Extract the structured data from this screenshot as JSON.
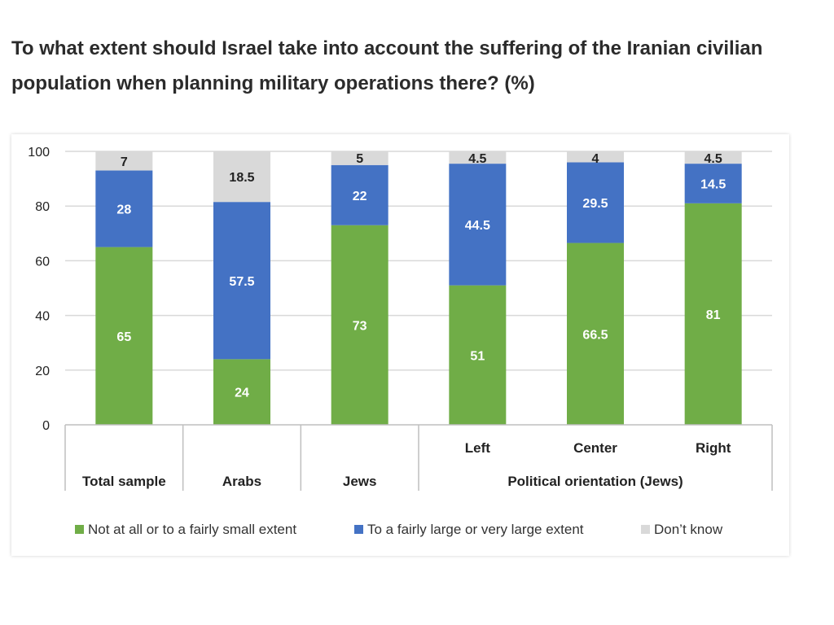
{
  "title": "To what extent should Israel take into account the suffering of the Iranian civilian population when planning military operations there? (%)",
  "colors": {
    "not_at_all": "#70ad47",
    "large_extent": "#4472c4",
    "dont_know": "#d9d9d9",
    "grid": "#d9d9d9",
    "label_on_color": "#ffffff",
    "label_on_gray": "#222222"
  },
  "chart_data": {
    "type": "bar",
    "stacked": true,
    "title": "To what extent should Israel take into account the suffering of the Iranian civilian population when planning military operations there? (%)",
    "categories": [
      "Total sample",
      "Arabs",
      "Jews",
      "Left",
      "Center",
      "Right"
    ],
    "category_groups": [
      {
        "label": "Total sample",
        "members": [
          "Total sample"
        ]
      },
      {
        "label": "Arabs",
        "members": [
          "Arabs"
        ]
      },
      {
        "label": "Jews",
        "members": [
          "Jews"
        ]
      },
      {
        "label": "Political orientation (Jews)",
        "members": [
          "Left",
          "Center",
          "Right"
        ]
      }
    ],
    "series": [
      {
        "name": "Not at all or to a fairly small extent",
        "color": "#70ad47",
        "values": [
          65,
          24,
          73,
          51,
          66.5,
          81
        ]
      },
      {
        "name": "To a fairly large or very large extent",
        "color": "#4472c4",
        "values": [
          28,
          57.5,
          22,
          44.5,
          29.5,
          14.5
        ]
      },
      {
        "name": "Don’t know",
        "color": "#d9d9d9",
        "values": [
          7,
          18.5,
          5,
          4.5,
          4,
          4.5
        ]
      }
    ],
    "ylim": [
      0,
      100
    ],
    "yticks": [
      0,
      20,
      40,
      60,
      80,
      100
    ],
    "grid": true,
    "legend_position": "bottom"
  }
}
